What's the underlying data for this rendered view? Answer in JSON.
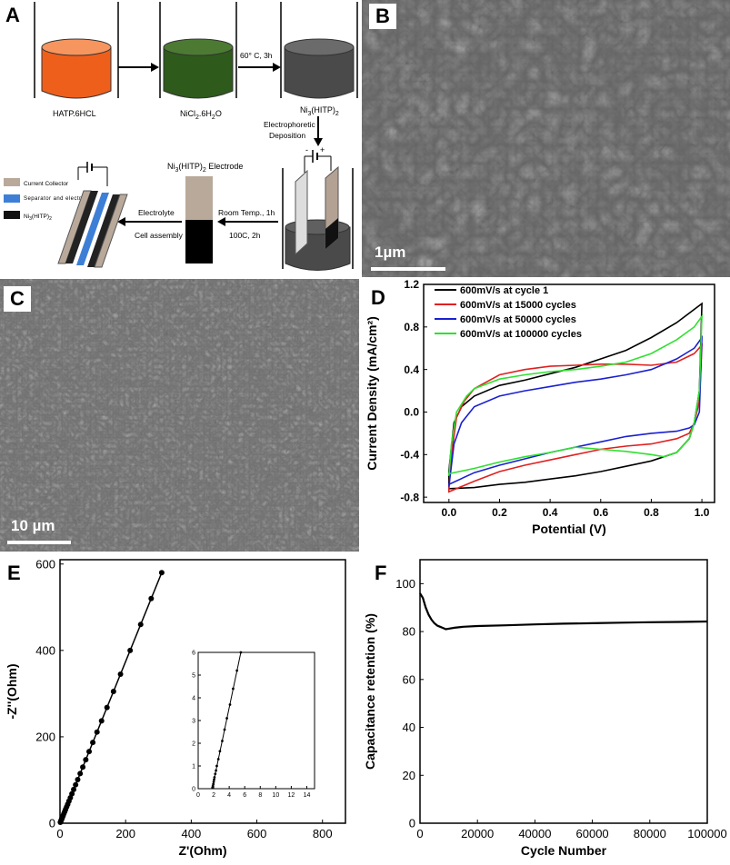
{
  "panels": {
    "A": {
      "label": "A",
      "beakers": [
        {
          "caption": "HATP.6HCL",
          "color": "#f0601e"
        },
        {
          "caption_parts": [
            "NiCl",
            "2",
            ".6H",
            "2",
            "O"
          ],
          "color": "#2e5a1c"
        },
        {
          "caption_parts": [
            "Ni",
            "3",
            "(HITP)",
            "2"
          ],
          "color": "#555555"
        }
      ],
      "step_heat": "60° C, 3h",
      "step_ep_line1": "Electrophoretic",
      "step_ep_line2": "Deposition",
      "electrode_title_parts": [
        "Ni",
        "3",
        "(HITP)",
        "2",
        " Electrode"
      ],
      "step_room": "Room Temp., 1h",
      "step_100c": "100C, 2h",
      "step_electrolyte": "Electrolyte",
      "step_cell": "Cell assembly",
      "legend": [
        {
          "label": "Current Collector",
          "color": "#b9a99a"
        },
        {
          "label": "Separator and electrolyte",
          "color": "#3d7fd6"
        },
        {
          "label_parts": [
            "Ni",
            "3",
            "(HITP)",
            "2"
          ],
          "color": "#111111"
        }
      ],
      "minus": "-",
      "plus": "+"
    },
    "B": {
      "label": "B",
      "scale": "1µm"
    },
    "C": {
      "label": "C",
      "scale": "10 µm"
    },
    "D": {
      "label": "D"
    },
    "E": {
      "label": "E"
    },
    "F": {
      "label": "F"
    }
  },
  "chart_data": [
    {
      "panel": "D",
      "type": "line",
      "xlabel": "Potential (V)",
      "ylabel": "Current Density (mA/cm²)",
      "xlim": [
        -0.1,
        1.05
      ],
      "ylim": [
        -0.85,
        1.2
      ],
      "xticks": [
        "0.0",
        "0.2",
        "0.4",
        "0.6",
        "0.8",
        "1.0"
      ],
      "yticks": [
        "-0.8",
        "-0.4",
        "0.0",
        "0.4",
        "0.8",
        "1.2"
      ],
      "legend_position": "top-right",
      "series": [
        {
          "name": "600mV/s at cycle 1",
          "color": "#000000",
          "upper": [
            [
              0.0,
              -0.55
            ],
            [
              0.02,
              -0.1
            ],
            [
              0.05,
              0.05
            ],
            [
              0.1,
              0.15
            ],
            [
              0.2,
              0.25
            ],
            [
              0.3,
              0.3
            ],
            [
              0.4,
              0.36
            ],
            [
              0.5,
              0.42
            ],
            [
              0.6,
              0.5
            ],
            [
              0.7,
              0.58
            ],
            [
              0.8,
              0.7
            ],
            [
              0.9,
              0.84
            ],
            [
              1.0,
              1.02
            ]
          ],
          "lower": [
            [
              1.0,
              1.02
            ],
            [
              0.99,
              0.2
            ],
            [
              0.97,
              -0.1
            ],
            [
              0.95,
              -0.25
            ],
            [
              0.9,
              -0.38
            ],
            [
              0.8,
              -0.46
            ],
            [
              0.7,
              -0.51
            ],
            [
              0.6,
              -0.56
            ],
            [
              0.5,
              -0.6
            ],
            [
              0.4,
              -0.63
            ],
            [
              0.3,
              -0.66
            ],
            [
              0.2,
              -0.68
            ],
            [
              0.1,
              -0.71
            ],
            [
              0.0,
              -0.72
            ]
          ]
        },
        {
          "name": "600mV/s at 15000 cycles",
          "color": "#e02020",
          "upper": [
            [
              0.0,
              -0.72
            ],
            [
              0.01,
              -0.4
            ],
            [
              0.03,
              -0.05
            ],
            [
              0.06,
              0.1
            ],
            [
              0.1,
              0.22
            ],
            [
              0.2,
              0.35
            ],
            [
              0.3,
              0.4
            ],
            [
              0.4,
              0.43
            ],
            [
              0.5,
              0.44
            ],
            [
              0.6,
              0.45
            ],
            [
              0.7,
              0.45
            ],
            [
              0.8,
              0.44
            ],
            [
              0.9,
              0.47
            ],
            [
              0.97,
              0.55
            ],
            [
              1.0,
              0.63
            ]
          ],
          "lower": [
            [
              1.0,
              0.63
            ],
            [
              0.99,
              0.1
            ],
            [
              0.97,
              -0.1
            ],
            [
              0.95,
              -0.2
            ],
            [
              0.9,
              -0.25
            ],
            [
              0.8,
              -0.3
            ],
            [
              0.7,
              -0.32
            ],
            [
              0.6,
              -0.35
            ],
            [
              0.5,
              -0.4
            ],
            [
              0.4,
              -0.45
            ],
            [
              0.3,
              -0.5
            ],
            [
              0.2,
              -0.56
            ],
            [
              0.1,
              -0.65
            ],
            [
              0.0,
              -0.75
            ]
          ]
        },
        {
          "name": "600mV/s at 50000 cycles",
          "color": "#1a20d0",
          "upper": [
            [
              0.0,
              -0.7
            ],
            [
              0.01,
              -0.5
            ],
            [
              0.02,
              -0.3
            ],
            [
              0.05,
              -0.1
            ],
            [
              0.1,
              0.05
            ],
            [
              0.2,
              0.15
            ],
            [
              0.3,
              0.2
            ],
            [
              0.4,
              0.24
            ],
            [
              0.5,
              0.28
            ],
            [
              0.6,
              0.31
            ],
            [
              0.7,
              0.35
            ],
            [
              0.8,
              0.4
            ],
            [
              0.9,
              0.5
            ],
            [
              0.97,
              0.6
            ],
            [
              1.0,
              0.7
            ]
          ],
          "lower": [
            [
              1.0,
              0.7
            ],
            [
              0.99,
              0.0
            ],
            [
              0.97,
              -0.12
            ],
            [
              0.95,
              -0.15
            ],
            [
              0.9,
              -0.18
            ],
            [
              0.8,
              -0.2
            ],
            [
              0.7,
              -0.23
            ],
            [
              0.6,
              -0.28
            ],
            [
              0.5,
              -0.33
            ],
            [
              0.4,
              -0.38
            ],
            [
              0.3,
              -0.44
            ],
            [
              0.2,
              -0.5
            ],
            [
              0.1,
              -0.57
            ],
            [
              0.0,
              -0.68
            ]
          ]
        },
        {
          "name": "600mV/s at 100000 cycles",
          "color": "#30e030",
          "upper": [
            [
              0.0,
              -0.6
            ],
            [
              0.01,
              -0.3
            ],
            [
              0.03,
              0.0
            ],
            [
              0.07,
              0.15
            ],
            [
              0.1,
              0.22
            ],
            [
              0.2,
              0.31
            ],
            [
              0.3,
              0.35
            ],
            [
              0.4,
              0.38
            ],
            [
              0.5,
              0.4
            ],
            [
              0.6,
              0.43
            ],
            [
              0.7,
              0.47
            ],
            [
              0.8,
              0.55
            ],
            [
              0.9,
              0.68
            ],
            [
              0.97,
              0.8
            ],
            [
              1.0,
              0.9
            ]
          ],
          "lower": [
            [
              1.0,
              0.9
            ],
            [
              0.99,
              0.2
            ],
            [
              0.97,
              -0.1
            ],
            [
              0.95,
              -0.25
            ],
            [
              0.9,
              -0.38
            ],
            [
              0.85,
              -0.42
            ],
            [
              0.8,
              -0.4
            ],
            [
              0.7,
              -0.37
            ],
            [
              0.6,
              -0.35
            ],
            [
              0.5,
              -0.33
            ],
            [
              0.4,
              -0.38
            ],
            [
              0.3,
              -0.42
            ],
            [
              0.2,
              -0.47
            ],
            [
              0.1,
              -0.53
            ],
            [
              0.0,
              -0.58
            ]
          ]
        }
      ]
    },
    {
      "panel": "E",
      "type": "scatter",
      "xlabel": "Z'(Ohm)",
      "ylabel": "-Z''(Ohm)",
      "xlim": [
        0,
        870
      ],
      "ylim": [
        0,
        610
      ],
      "xticks": [
        "0",
        "200",
        "400",
        "600",
        "800"
      ],
      "yticks": [
        "0",
        "200",
        "400",
        "600"
      ],
      "points": [
        [
          2,
          2
        ],
        [
          4,
          4
        ],
        [
          6,
          6
        ],
        [
          8,
          8
        ],
        [
          10,
          10
        ],
        [
          12,
          12
        ],
        [
          15,
          15
        ],
        [
          18,
          18
        ],
        [
          22,
          22
        ],
        [
          27,
          27
        ],
        [
          32,
          32
        ],
        [
          38,
          38
        ],
        [
          44,
          44
        ],
        [
          51,
          51
        ],
        [
          59,
          59
        ],
        [
          68,
          68
        ],
        [
          78,
          78
        ],
        [
          89,
          89
        ],
        [
          101,
          101
        ],
        [
          115,
          115
        ],
        [
          130,
          130
        ],
        [
          147,
          147
        ],
        [
          166,
          166
        ],
        [
          187,
          187
        ],
        [
          211,
          211
        ],
        [
          237,
          237
        ],
        [
          268,
          268
        ],
        [
          305,
          305
        ],
        [
          345,
          345
        ],
        [
          400,
          400
        ],
        [
          460,
          460
        ],
        [
          520,
          520
        ],
        [
          580,
          580
        ]
      ],
      "line_to": [
        310,
        580
      ],
      "inset": {
        "xlim": [
          0,
          15
        ],
        "ylim": [
          0,
          6
        ],
        "xticks": [
          "0",
          "2",
          "4",
          "6",
          "8",
          "10",
          "12",
          "14"
        ],
        "yticks": [
          "0",
          "1",
          "2",
          "3",
          "4",
          "5",
          "6"
        ],
        "line": [
          [
            1.8,
            0.0
          ],
          [
            5.5,
            6.0
          ]
        ],
        "points": [
          [
            1.85,
            0.05
          ],
          [
            1.9,
            0.12
          ],
          [
            1.95,
            0.2
          ],
          [
            2.0,
            0.3
          ],
          [
            2.05,
            0.4
          ],
          [
            2.1,
            0.5
          ],
          [
            2.2,
            0.65
          ],
          [
            2.3,
            0.8
          ],
          [
            2.4,
            1.0
          ],
          [
            2.6,
            1.3
          ],
          [
            2.8,
            1.65
          ],
          [
            3.1,
            2.1
          ],
          [
            3.4,
            2.6
          ],
          [
            3.7,
            3.1
          ],
          [
            4.1,
            3.7
          ],
          [
            4.5,
            4.4
          ],
          [
            5.0,
            5.2
          ],
          [
            5.5,
            6.0
          ]
        ]
      }
    },
    {
      "panel": "F",
      "type": "line",
      "xlabel": "Cycle Number",
      "ylabel": "Capacitance retention (%)",
      "xlim": [
        0,
        100000
      ],
      "ylim": [
        0,
        110
      ],
      "xticks": [
        "0",
        "20000",
        "40000",
        "60000",
        "80000",
        "100000"
      ],
      "yticks": [
        "0",
        "20",
        "40",
        "60",
        "80",
        "100"
      ],
      "series": [
        {
          "name": "",
          "color": "#000000",
          "points": [
            [
              0,
              96
            ],
            [
              1000,
              94
            ],
            [
              2000,
              90
            ],
            [
              3000,
              87
            ],
            [
              4000,
              85
            ],
            [
              5000,
              83.5
            ],
            [
              6000,
              82.5
            ],
            [
              7000,
              82
            ],
            [
              8000,
              81.5
            ],
            [
              9000,
              81
            ],
            [
              10000,
              81.2
            ],
            [
              12000,
              81.6
            ],
            [
              15000,
              82
            ],
            [
              20000,
              82.3
            ],
            [
              30000,
              82.6
            ],
            [
              40000,
              83
            ],
            [
              50000,
              83.3
            ],
            [
              60000,
              83.5
            ],
            [
              70000,
              83.7
            ],
            [
              80000,
              83.9
            ],
            [
              90000,
              84
            ],
            [
              100000,
              84.2
            ]
          ]
        }
      ]
    }
  ]
}
